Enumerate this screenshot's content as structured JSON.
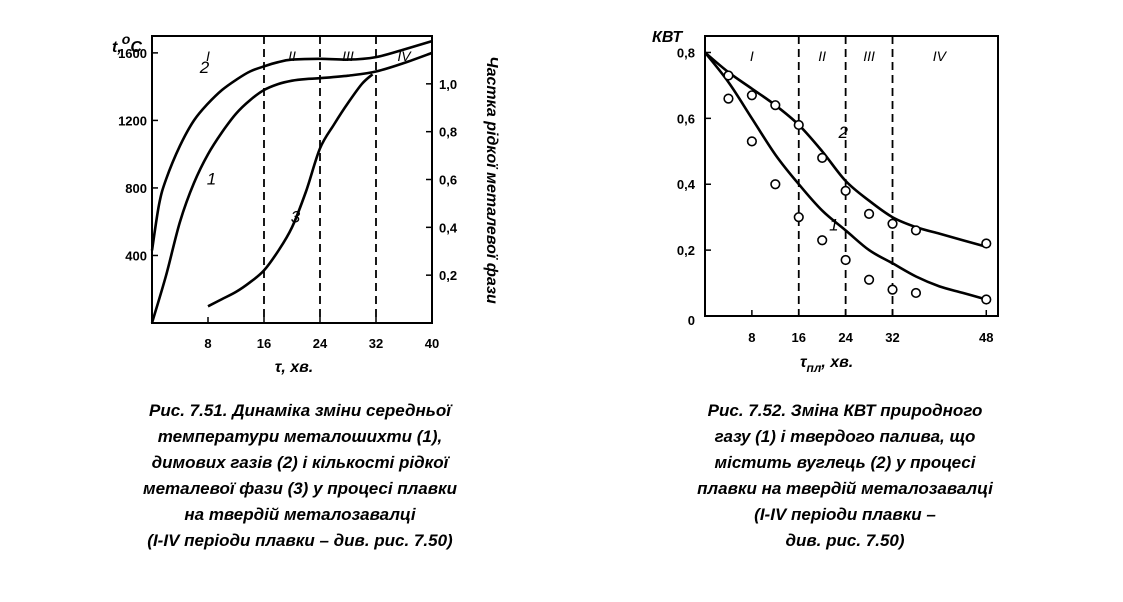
{
  "chart_data": [
    {
      "type": "line",
      "ylabel": "t,°C",
      "ylabel_parts": {
        "base": "t,",
        "sup": "o",
        "unit": "C"
      },
      "xlabel": "τ, хв.",
      "y2label": "Частка рідкої металевої фази",
      "xlim": [
        0,
        40
      ],
      "ylim": [
        0,
        1700
      ],
      "y2lim": [
        0,
        1.2
      ],
      "x_ticks": [
        8,
        16,
        24,
        32,
        40
      ],
      "y_ticks": [
        400,
        800,
        1200,
        1600
      ],
      "y2_ticks": [
        "0,2",
        "0,4",
        "0,6",
        "0,8",
        "1,0"
      ],
      "y2_tick_values": [
        0.2,
        0.4,
        0.6,
        0.8,
        1.0
      ],
      "periods": [
        {
          "label": "I",
          "from": 0,
          "to": 16
        },
        {
          "label": "II",
          "from": 16,
          "to": 24
        },
        {
          "label": "III",
          "from": 24,
          "to": 32
        },
        {
          "label": "IV",
          "from": 32,
          "to": 40
        }
      ],
      "grid": false,
      "series": [
        {
          "name": "1",
          "axis": "left",
          "x": [
            0,
            2,
            4,
            6,
            8,
            10,
            12,
            14,
            16,
            18,
            20,
            22,
            24,
            28,
            32,
            36,
            40
          ],
          "y": [
            0,
            280,
            600,
            830,
            1000,
            1130,
            1240,
            1320,
            1380,
            1415,
            1435,
            1445,
            1450,
            1465,
            1490,
            1540,
            1600
          ]
        },
        {
          "name": "2",
          "axis": "left",
          "x": [
            0,
            1,
            2,
            4,
            6,
            8,
            10,
            12,
            14,
            16,
            18,
            20,
            24,
            28,
            32,
            36,
            40
          ],
          "y": [
            430,
            700,
            850,
            1050,
            1200,
            1300,
            1380,
            1440,
            1490,
            1520,
            1545,
            1560,
            1565,
            1560,
            1575,
            1620,
            1670
          ]
        },
        {
          "name": "3",
          "axis": "right",
          "x": [
            8,
            10,
            12,
            14,
            16,
            18,
            20,
            22,
            24,
            26,
            28,
            30,
            31.5
          ],
          "y": [
            0.07,
            0.1,
            0.13,
            0.17,
            0.22,
            0.3,
            0.4,
            0.55,
            0.73,
            0.83,
            0.92,
            1.0,
            1.04
          ]
        }
      ],
      "curve_labels": [
        "2",
        "1",
        "3"
      ]
    },
    {
      "type": "line",
      "ylabel": "КВТ",
      "xlabel": "τпл, хв.",
      "xlabel_parts": {
        "base": "τ",
        "sub": "пл",
        "rest": ", хв."
      },
      "xlim": [
        0,
        50
      ],
      "ylim": [
        0,
        0.85
      ],
      "x_ticks": [
        8,
        16,
        24,
        32,
        48
      ],
      "y_ticks": [
        "0",
        "0,2",
        "0,4",
        "0,6",
        "0,8"
      ],
      "y_tick_values": [
        0,
        0.2,
        0.4,
        0.6,
        0.8
      ],
      "periods": [
        {
          "label": "I",
          "from": 0,
          "to": 16
        },
        {
          "label": "II",
          "from": 16,
          "to": 24
        },
        {
          "label": "III",
          "from": 24,
          "to": 32
        },
        {
          "label": "IV",
          "from": 32,
          "to": 48
        }
      ],
      "grid": false,
      "series": [
        {
          "name": "1",
          "x": [
            0,
            4,
            8,
            12,
            16,
            20,
            24,
            28,
            32,
            36,
            40,
            44,
            48
          ],
          "y": [
            0.8,
            0.71,
            0.6,
            0.49,
            0.4,
            0.32,
            0.26,
            0.2,
            0.16,
            0.12,
            0.09,
            0.07,
            0.05
          ],
          "markers": [
            [
              4,
              0.66
            ],
            [
              8,
              0.53
            ],
            [
              12,
              0.4
            ],
            [
              16,
              0.3
            ],
            [
              20,
              0.23
            ],
            [
              24,
              0.17
            ],
            [
              28,
              0.11
            ],
            [
              32,
              0.08
            ],
            [
              36,
              0.07
            ],
            [
              48,
              0.05
            ]
          ]
        },
        {
          "name": "2",
          "x": [
            0,
            4,
            8,
            12,
            16,
            20,
            24,
            28,
            32,
            36,
            40,
            44,
            48
          ],
          "y": [
            0.8,
            0.74,
            0.69,
            0.64,
            0.58,
            0.5,
            0.41,
            0.35,
            0.3,
            0.27,
            0.25,
            0.23,
            0.21
          ],
          "markers": [
            [
              4,
              0.73
            ],
            [
              8,
              0.67
            ],
            [
              12,
              0.64
            ],
            [
              16,
              0.58
            ],
            [
              20,
              0.48
            ],
            [
              24,
              0.38
            ],
            [
              28,
              0.31
            ],
            [
              32,
              0.28
            ],
            [
              36,
              0.26
            ],
            [
              48,
              0.22
            ]
          ]
        }
      ],
      "curve_labels": [
        "2",
        "1"
      ]
    }
  ],
  "captions": [
    {
      "lines": [
        "Рис. 7.51. Динаміка зміни середньої",
        "температури металошихти (1),",
        "димових газів (2) і кількості рідкої",
        "металевої фази (3) у процесі плавки",
        "на твердій металозавалці",
        "(I-IV періоди плавки – див. рис. 7.50)"
      ]
    },
    {
      "lines": [
        "Рис. 7.52. Зміна КВТ природного",
        "газу (1) і твердого палива, що",
        "містить вуглець (2) у процесі",
        "плавки на твердій металозавалці",
        "(I-IV періоди плавки –",
        "див. рис. 7.50)"
      ]
    }
  ]
}
